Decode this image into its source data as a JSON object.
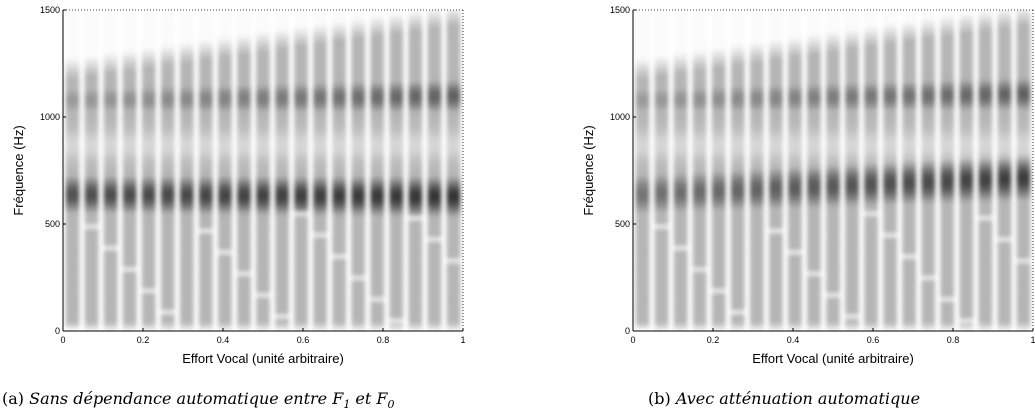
{
  "chart_data": [
    {
      "type": "heatmap",
      "title": "",
      "xlabel": "Effort Vocal (unité arbitraire)",
      "ylabel": "Fréquence (Hz)",
      "xlim": [
        0,
        1
      ],
      "ylim": [
        0,
        1500
      ],
      "x_ticks": [
        "0",
        "0.2",
        "0.4",
        "0.6",
        "0.8",
        "1"
      ],
      "y_ticks": [
        "0",
        "500",
        "1000",
        "1500"
      ],
      "colormap": "gray (dark = high energy)",
      "harmonic_columns": 21,
      "formants": [
        {
          "name": "F1",
          "start_hz": 640,
          "end_hz": 630,
          "bandwidth_hz": 95,
          "start_intensity": 0.78,
          "end_intensity": 0.92
        },
        {
          "name": "F2",
          "start_hz": 1080,
          "end_hz": 1100,
          "bandwidth_hz": 85,
          "start_intensity": 0.45,
          "end_intensity": 0.72
        }
      ],
      "caption": {
        "tag": "(a)",
        "text": "Sans dépendance automatique entre F",
        "sub1": "1",
        "mid": " et F",
        "sub2": "0"
      }
    },
    {
      "type": "heatmap",
      "title": "",
      "xlabel": "Effort Vocal (unité arbitraire)",
      "ylabel": "Fréquence (Hz)",
      "xlim": [
        0,
        1
      ],
      "ylim": [
        0,
        1500
      ],
      "x_ticks": [
        "0",
        "0.2",
        "0.4",
        "0.6",
        "0.8",
        "1"
      ],
      "y_ticks": [
        "0",
        "500",
        "1000",
        "1500"
      ],
      "colormap": "gray (dark = high energy)",
      "harmonic_columns": 21,
      "formants": [
        {
          "name": "F1",
          "start_hz": 640,
          "end_hz": 720,
          "bandwidth_hz": 110,
          "start_intensity": 0.62,
          "end_intensity": 0.88
        },
        {
          "name": "F2",
          "start_hz": 1080,
          "end_hz": 1110,
          "bandwidth_hz": 85,
          "start_intensity": 0.45,
          "end_intensity": 0.72
        }
      ],
      "caption": {
        "tag": "(b)",
        "text": "Avec atténuation automatique",
        "sub1": "",
        "mid": "",
        "sub2": ""
      }
    }
  ]
}
